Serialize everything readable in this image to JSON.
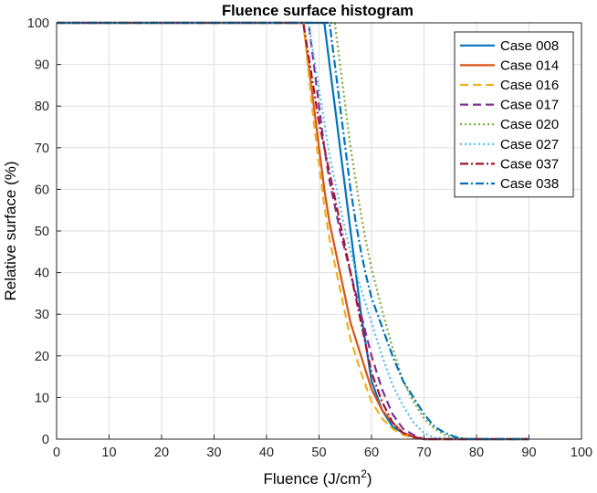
{
  "chart_data": {
    "type": "line",
    "title": "Fluence surface histogram",
    "xlabel_main": "Fluence (J/cm",
    "xlabel_sup": "2",
    "xlabel_close": ")",
    "ylabel": "Relative surface (%)",
    "xlim": [
      0,
      100
    ],
    "ylim": [
      0,
      100
    ],
    "xticks": [
      0,
      10,
      20,
      30,
      40,
      50,
      60,
      70,
      80,
      90,
      100
    ],
    "yticks": [
      0,
      10,
      20,
      30,
      40,
      50,
      60,
      70,
      80,
      90,
      100
    ],
    "grid": true,
    "legend_position": "top-right",
    "series": [
      {
        "name": "Case 008",
        "color": "#0072BD",
        "dash": "solid",
        "x": [
          0,
          51,
          52,
          53,
          54,
          55,
          56,
          57,
          58,
          59,
          60,
          62,
          64,
          66,
          68,
          70,
          80,
          90
        ],
        "y": [
          100,
          100,
          90,
          80,
          70,
          60,
          50,
          40,
          30,
          22,
          14,
          7,
          3,
          1.5,
          0.5,
          0,
          0,
          0
        ]
      },
      {
        "name": "Case 014",
        "color": "#D95319",
        "dash": "solid",
        "x": [
          0,
          47,
          48,
          49,
          50,
          51,
          52,
          53,
          54,
          55,
          56,
          58,
          60,
          62,
          64,
          66,
          68,
          70,
          80,
          90
        ],
        "y": [
          100,
          100,
          90,
          80,
          70,
          60,
          52,
          46,
          40,
          34,
          28,
          20,
          12,
          7,
          4,
          1.5,
          0.5,
          0,
          0,
          0
        ]
      },
      {
        "name": "Case 016",
        "color": "#EDB120",
        "dash": "dashed",
        "x": [
          0,
          47,
          48,
          49,
          50,
          51,
          52,
          53,
          54,
          55,
          56,
          58,
          60,
          62,
          64,
          66,
          68,
          70,
          80,
          90
        ],
        "y": [
          100,
          100,
          88,
          76,
          66,
          56,
          48,
          42,
          36,
          30,
          24,
          16,
          9,
          5,
          2.5,
          1,
          0.3,
          0,
          0,
          0
        ]
      },
      {
        "name": "Case 017",
        "color": "#7E2F8E",
        "dash": "dashed",
        "x": [
          0,
          48,
          49,
          50,
          51,
          52,
          53,
          54,
          55,
          56,
          58,
          60,
          62,
          64,
          66,
          68,
          70,
          80,
          90
        ],
        "y": [
          100,
          100,
          90,
          80,
          70,
          62,
          56,
          50,
          45,
          40,
          30,
          20,
          12,
          6,
          2.5,
          1,
          0,
          0,
          0
        ]
      },
      {
        "name": "Case 020",
        "color": "#77AC30",
        "dash": "dotted",
        "x": [
          0,
          53,
          54,
          55,
          56,
          57,
          58,
          59,
          60,
          62,
          64,
          66,
          68,
          70,
          72,
          74,
          76,
          80,
          90
        ],
        "y": [
          100,
          100,
          90,
          80,
          70,
          62,
          54,
          47,
          41,
          31,
          22,
          14,
          9,
          5,
          2.5,
          1,
          0.3,
          0,
          0
        ]
      },
      {
        "name": "Case 027",
        "color": "#4DBEEE",
        "dash": "dotted",
        "x": [
          0,
          48,
          49,
          50,
          51,
          52,
          53,
          54,
          55,
          56,
          58,
          60,
          62,
          64,
          66,
          68,
          70,
          72,
          80,
          90
        ],
        "y": [
          100,
          100,
          92,
          84,
          76,
          68,
          62,
          56,
          50,
          45,
          36,
          28,
          20,
          13,
          8,
          4,
          1.5,
          0.3,
          0,
          0
        ]
      },
      {
        "name": "Case 037",
        "color": "#A2142F",
        "dash": "dashdot",
        "x": [
          0,
          47,
          48,
          49,
          50,
          51,
          52,
          53,
          54,
          55,
          56,
          58,
          60,
          62,
          64,
          66,
          68,
          70,
          80,
          90
        ],
        "y": [
          100,
          100,
          92,
          84,
          76,
          70,
          64,
          58,
          52,
          46,
          40,
          28,
          16,
          9,
          4,
          1.5,
          0.5,
          0,
          0,
          0
        ]
      },
      {
        "name": "Case 038",
        "color": "#0072BD",
        "dash": "dashdot",
        "x": [
          0,
          52,
          53,
          54,
          55,
          56,
          57,
          58,
          59,
          60,
          62,
          64,
          66,
          68,
          70,
          72,
          74,
          76,
          78,
          90
        ],
        "y": [
          100,
          100,
          90,
          80,
          70,
          60,
          52,
          45,
          39,
          34,
          27,
          20,
          14,
          10,
          6,
          3,
          1.5,
          0.5,
          0,
          0
        ]
      }
    ]
  }
}
